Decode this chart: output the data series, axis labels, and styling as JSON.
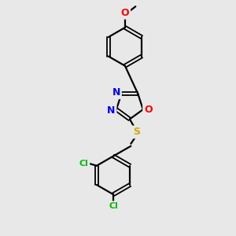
{
  "background_color": "#e8e8e8",
  "bond_color": "#000000",
  "atom_colors": {
    "N": "#0000ff",
    "O": "#ff0000",
    "S": "#ccaa00",
    "Cl": "#00bb00",
    "C": "#000000"
  },
  "figsize": [
    3.0,
    3.0
  ],
  "dpi": 100
}
